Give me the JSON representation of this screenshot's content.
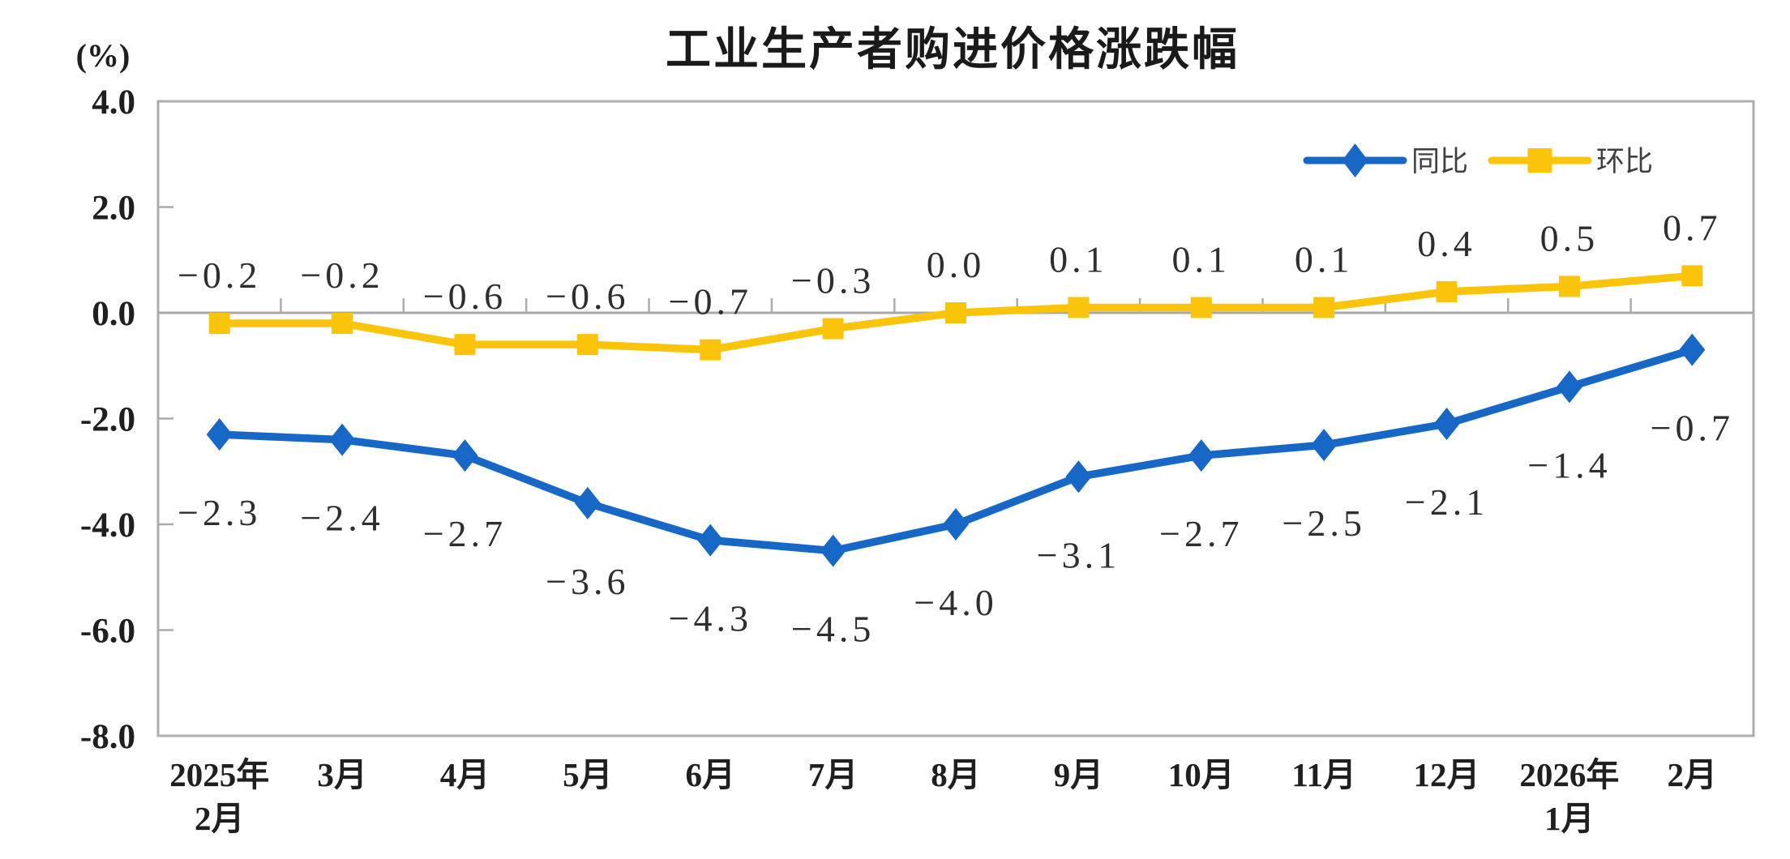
{
  "title": "工业生产者购进价格涨跌幅",
  "y_axis_unit": "(%)",
  "legend": {
    "position": "top-right",
    "items": [
      {
        "label": "同比",
        "color": "#1667C6",
        "marker": "diamond"
      },
      {
        "label": "环比",
        "color": "#FAC40A",
        "marker": "square"
      }
    ]
  },
  "chart_data": {
    "type": "line",
    "title": "工业生产者购进价格涨跌幅",
    "ylabel": "(%)",
    "ylim": [
      -8.0,
      4.0
    ],
    "y_ticks": [
      "4.0",
      "2.0",
      "0.0",
      "-2.0",
      "-4.0",
      "-6.0",
      "-8.0"
    ],
    "grid": false,
    "legend_position": "top-right",
    "categories": [
      [
        "2025年",
        "2月"
      ],
      [
        "3月"
      ],
      [
        "4月"
      ],
      [
        "5月"
      ],
      [
        "6月"
      ],
      [
        "7月"
      ],
      [
        "8月"
      ],
      [
        "9月"
      ],
      [
        "10月"
      ],
      [
        "11月"
      ],
      [
        "12月"
      ],
      [
        "2026年",
        "1月"
      ],
      [
        "2月"
      ]
    ],
    "series": [
      {
        "name": "同比",
        "color": "#1667C6",
        "marker": "diamond",
        "label_position": "below",
        "values": [
          -2.3,
          -2.4,
          -2.7,
          -3.6,
          -4.3,
          -4.5,
          -4.0,
          -3.1,
          -2.7,
          -2.5,
          -2.1,
          -1.4,
          -0.7
        ],
        "labels": [
          "-2.3",
          "-2.4",
          "-2.7",
          "-3.6",
          "-4.3",
          "-4.5",
          "-4.0",
          "-3.1",
          "-2.7",
          "-2.5",
          "-2.1",
          "-1.4",
          "-0.7"
        ]
      },
      {
        "name": "环比",
        "color": "#FAC40A",
        "marker": "square",
        "label_position": "above",
        "values": [
          -0.2,
          -0.2,
          -0.6,
          -0.6,
          -0.7,
          -0.3,
          0.0,
          0.1,
          0.1,
          0.1,
          0.4,
          0.5,
          0.7
        ],
        "labels": [
          "-0.2",
          "-0.2",
          "-0.6",
          "-0.6",
          "-0.7",
          "-0.3",
          "0.0",
          "0.1",
          "0.1",
          "0.1",
          "0.4",
          "0.5",
          "0.7"
        ]
      }
    ]
  },
  "colors": {
    "axis_line": "#ABABAB",
    "frame": "#ADADAD",
    "zero_line": "#A8A8A8",
    "tick_text": "#1f1f1f",
    "data_label_text": "#2e2e2e",
    "title_text": "#1a1a1a",
    "legend_text": "#3f3f3f",
    "background": "#ffffff"
  }
}
